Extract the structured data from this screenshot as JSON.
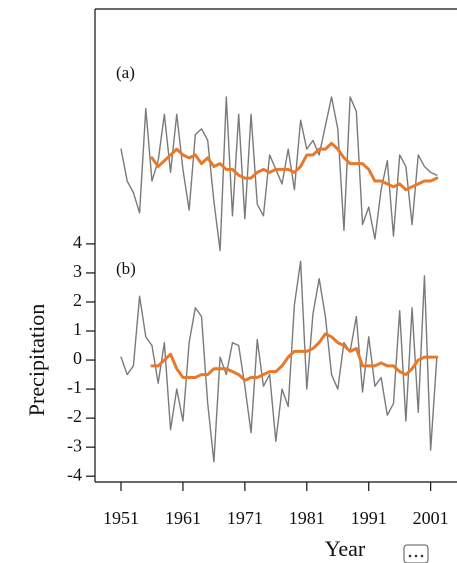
{
  "chart_data": [
    {
      "type": "line",
      "title": "(a)",
      "x": [
        1951,
        1952,
        1953,
        1954,
        1955,
        1956,
        1957,
        1958,
        1959,
        1960,
        1961,
        1962,
        1963,
        1964,
        1965,
        1966,
        1967,
        1968,
        1969,
        1970,
        1971,
        1972,
        1973,
        1974,
        1975,
        1976,
        1977,
        1978,
        1979,
        1980,
        1981,
        1982,
        1983,
        1984,
        1985,
        1986,
        1987,
        1988,
        1989,
        1990,
        1991,
        1992,
        1993,
        1994,
        1995,
        1996,
        1997,
        1998,
        1999,
        2000,
        2001,
        2002
      ],
      "series": [
        {
          "color": "#7a7a7a",
          "values": [
            0.9,
            -0.2,
            -0.6,
            -1.3,
            2.3,
            -0.2,
            0.5,
            2.1,
            0.1,
            2.1,
            0.2,
            -1.2,
            1.4,
            1.6,
            1.2,
            -0.9,
            -2.6,
            2.7,
            -1.4,
            2.1,
            -1.5,
            2.1,
            -1.0,
            -1.4,
            0.7,
            0.2,
            -0.3,
            0.9,
            -0.5,
            1.9,
            0.9,
            1.2,
            0.7,
            1.7,
            2.7,
            1.6,
            -1.9,
            2.7,
            2.2,
            -1.7,
            -1.1,
            -2.2,
            -0.5,
            0.5,
            -2.1,
            0.7,
            0.3,
            -1.7,
            0.7,
            0.3,
            0.1,
            0.0
          ]
        },
        {
          "color": "#e8792b",
          "values": [
            null,
            null,
            null,
            null,
            null,
            0.6,
            0.3,
            0.5,
            0.7,
            0.9,
            0.7,
            0.6,
            0.7,
            0.4,
            0.6,
            0.3,
            0.4,
            0.2,
            0.2,
            0,
            -0.1,
            -0.1,
            0.1,
            0.2,
            0.1,
            0.2,
            0.2,
            0.2,
            0.1,
            0.3,
            0.7,
            0.7,
            0.9,
            0.9,
            1.1,
            0.9,
            0.6,
            0.4,
            0.4,
            0.4,
            0.2,
            -0.2,
            -0.2,
            -0.3,
            -0.4,
            -0.3,
            -0.5,
            -0.4,
            -0.3,
            -0.2,
            -0.2,
            -0.1
          ]
        }
      ],
      "xlim": [
        1946.8,
        2008
      ],
      "ylim": [
        -2.2,
        5.7
      ]
    },
    {
      "type": "line",
      "title": "(b)",
      "x": [
        1951,
        1952,
        1953,
        1954,
        1955,
        1956,
        1957,
        1958,
        1959,
        1960,
        1961,
        1962,
        1963,
        1964,
        1965,
        1966,
        1967,
        1968,
        1969,
        1970,
        1971,
        1972,
        1973,
        1974,
        1975,
        1976,
        1977,
        1978,
        1979,
        1980,
        1981,
        1982,
        1983,
        1984,
        1985,
        1986,
        1987,
        1988,
        1989,
        1990,
        1991,
        1992,
        1993,
        1994,
        1995,
        1996,
        1997,
        1998,
        1999,
        2000,
        2001,
        2002
      ],
      "series": [
        {
          "color": "#7a7a7a",
          "values": [
            0.1,
            -0.5,
            -0.2,
            2.2,
            0.8,
            0.5,
            -0.8,
            0.6,
            -2.4,
            -1.0,
            -2.1,
            0.6,
            1.8,
            1.5,
            -1.5,
            -3.5,
            0.1,
            -0.5,
            0.6,
            0.5,
            -0.9,
            -2.5,
            0.7,
            -0.9,
            -0.5,
            -2.8,
            -1.0,
            -1.6,
            1.9,
            3.4,
            -1.0,
            1.6,
            2.8,
            1.5,
            -0.5,
            -1.0,
            0.6,
            0.3,
            1.5,
            -1.1,
            0.8,
            -0.9,
            -0.6,
            -1.9,
            -1.5,
            1.7,
            -2.1,
            1.8,
            -1.8,
            2.9,
            -3.1,
            0.1
          ]
        },
        {
          "color": "#e8792b",
          "values": [
            null,
            null,
            null,
            null,
            null,
            -0.2,
            -0.2,
            0.0,
            0.2,
            -0.3,
            -0.6,
            -0.6,
            -0.6,
            -0.5,
            -0.5,
            -0.3,
            -0.3,
            -0.3,
            -0.4,
            -0.5,
            -0.7,
            -0.6,
            -0.6,
            -0.5,
            -0.4,
            -0.4,
            -0.2,
            0.1,
            0.3,
            0.3,
            0.3,
            0.4,
            0.6,
            0.9,
            0.8,
            0.6,
            0.5,
            0.3,
            0.4,
            -0.2,
            -0.2,
            -0.2,
            -0.1,
            -0.2,
            -0.2,
            -0.4,
            -0.5,
            -0.3,
            0.0,
            0.1,
            0.1,
            0.1
          ]
        }
      ],
      "xlim": [
        1946.8,
        2008
      ],
      "ylim": [
        -4.2,
        4.1
      ],
      "yticks": [
        -4,
        -3,
        -2,
        -1,
        0,
        1,
        2,
        3,
        4
      ],
      "xticks": [
        1951,
        1961,
        1971,
        1981,
        1991,
        2001
      ],
      "xlabel": "Year",
      "ylabel": "Precipitation"
    }
  ]
}
